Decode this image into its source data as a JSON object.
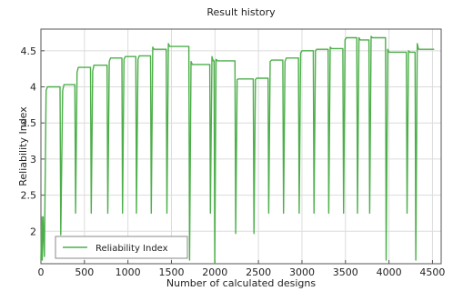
{
  "chart_data": {
    "type": "line",
    "title": "Result history",
    "xlabel": "Number of calculated designs",
    "ylabel": "Reliability Index",
    "xlim": [
      0,
      4600
    ],
    "ylim": [
      1.55,
      4.8
    ],
    "xticks": [
      0,
      500,
      1000,
      1500,
      2000,
      2500,
      3000,
      3500,
      4000,
      4500
    ],
    "yticks": [
      2,
      2.5,
      3,
      3.5,
      4,
      4.5
    ],
    "ytick_labels": [
      "2",
      "2.5",
      "3",
      "3.5",
      "4",
      "4.5"
    ],
    "grid": true,
    "legend_position": "bottom-left",
    "color": "#4daf4a",
    "series": [
      {
        "name": "Reliability Index",
        "points": [
          [
            0,
            1.6
          ],
          [
            8,
            2.2
          ],
          [
            15,
            1.6
          ],
          [
            25,
            2.2
          ],
          [
            40,
            1.65
          ],
          [
            60,
            3.95
          ],
          [
            75,
            4.0
          ],
          [
            220,
            4.0
          ],
          [
            228,
            1.95
          ],
          [
            250,
            3.95
          ],
          [
            265,
            4.03
          ],
          [
            390,
            4.03
          ],
          [
            398,
            2.25
          ],
          [
            415,
            4.2
          ],
          [
            430,
            4.27
          ],
          [
            570,
            4.27
          ],
          [
            578,
            2.25
          ],
          [
            595,
            4.22
          ],
          [
            610,
            4.3
          ],
          [
            760,
            4.3
          ],
          [
            768,
            2.25
          ],
          [
            785,
            4.35
          ],
          [
            800,
            4.4
          ],
          [
            930,
            4.4
          ],
          [
            938,
            2.25
          ],
          [
            955,
            4.38
          ],
          [
            970,
            4.42
          ],
          [
            1090,
            4.42
          ],
          [
            1098,
            2.25
          ],
          [
            1115,
            4.38
          ],
          [
            1130,
            4.43
          ],
          [
            1260,
            4.43
          ],
          [
            1268,
            2.25
          ],
          [
            1285,
            4.55
          ],
          [
            1300,
            4.52
          ],
          [
            1440,
            4.52
          ],
          [
            1448,
            2.25
          ],
          [
            1465,
            4.6
          ],
          [
            1480,
            4.56
          ],
          [
            1700,
            4.56
          ],
          [
            1708,
            1.6
          ],
          [
            1725,
            4.35
          ],
          [
            1740,
            4.31
          ],
          [
            1940,
            4.31
          ],
          [
            1948,
            2.25
          ],
          [
            1965,
            4.42
          ],
          [
            1980,
            4.36
          ],
          [
            1990,
            4.36
          ],
          [
            1998,
            1.55
          ],
          [
            2012,
            4.38
          ],
          [
            2030,
            4.36
          ],
          [
            2230,
            4.36
          ],
          [
            2238,
            1.97
          ],
          [
            2255,
            4.1
          ],
          [
            2270,
            4.11
          ],
          [
            2440,
            4.11
          ],
          [
            2448,
            1.97
          ],
          [
            2465,
            4.1
          ],
          [
            2480,
            4.12
          ],
          [
            2610,
            4.12
          ],
          [
            2618,
            2.25
          ],
          [
            2635,
            4.35
          ],
          [
            2650,
            4.37
          ],
          [
            2780,
            4.37
          ],
          [
            2788,
            2.25
          ],
          [
            2805,
            4.35
          ],
          [
            2820,
            4.4
          ],
          [
            2960,
            4.4
          ],
          [
            2968,
            2.25
          ],
          [
            2985,
            4.47
          ],
          [
            3000,
            4.5
          ],
          [
            3130,
            4.5
          ],
          [
            3138,
            2.25
          ],
          [
            3155,
            4.5
          ],
          [
            3170,
            4.52
          ],
          [
            3300,
            4.52
          ],
          [
            3308,
            2.25
          ],
          [
            3325,
            4.55
          ],
          [
            3340,
            4.53
          ],
          [
            3470,
            4.53
          ],
          [
            3478,
            2.25
          ],
          [
            3495,
            4.65
          ],
          [
            3510,
            4.68
          ],
          [
            3630,
            4.68
          ],
          [
            3638,
            2.25
          ],
          [
            3655,
            4.68
          ],
          [
            3670,
            4.65
          ],
          [
            3770,
            4.65
          ],
          [
            3778,
            2.25
          ],
          [
            3795,
            4.7
          ],
          [
            3810,
            4.68
          ],
          [
            3960,
            4.68
          ],
          [
            3968,
            1.6
          ],
          [
            3985,
            4.52
          ],
          [
            4000,
            4.48
          ],
          [
            4200,
            4.48
          ],
          [
            4208,
            2.25
          ],
          [
            4225,
            4.5
          ],
          [
            4240,
            4.48
          ],
          [
            4300,
            4.48
          ],
          [
            4308,
            1.6
          ],
          [
            4325,
            4.6
          ],
          [
            4340,
            4.52
          ],
          [
            4520,
            4.52
          ]
        ]
      }
    ]
  }
}
